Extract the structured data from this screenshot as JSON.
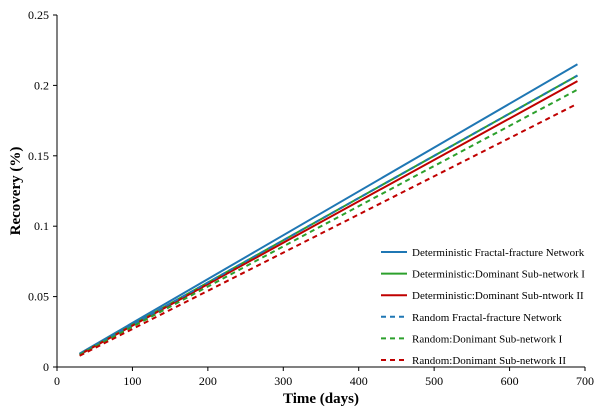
{
  "chart_data": {
    "type": "line",
    "title": "",
    "xlabel": "Time (days)",
    "ylabel": "Recovery (%)",
    "xlim": [
      0,
      700
    ],
    "ylim": [
      0,
      0.25
    ],
    "xticks": [
      0,
      100,
      200,
      300,
      400,
      500,
      600,
      700
    ],
    "yticks": [
      0,
      0.05,
      0.1,
      0.15,
      0.2,
      0.25
    ],
    "xtick_labels": [
      "0",
      "100",
      "200",
      "300",
      "400",
      "500",
      "600",
      "700"
    ],
    "ytick_labels": [
      "0",
      "0.05",
      "0.1",
      "0.15",
      "0.2",
      "0.25"
    ],
    "grid": false,
    "legend_position": "bottom-right",
    "series": [
      {
        "name": "Deterministic Fractal-fracture Network",
        "color": "#1f77b4",
        "dashed": false,
        "x": [
          30,
          690
        ],
        "y": [
          0.0095,
          0.215
        ]
      },
      {
        "name": "Deterministic:Dominant Sub-network I",
        "color": "#2ca02c",
        "dashed": false,
        "x": [
          30,
          690
        ],
        "y": [
          0.009,
          0.207
        ]
      },
      {
        "name": "Deterministic:Dominant Sub-ntwork II",
        "color": "#c00000",
        "dashed": false,
        "x": [
          30,
          690
        ],
        "y": [
          0.0088,
          0.203
        ]
      },
      {
        "name": "Random Fractal-fracture Network",
        "color": "#1f77b4",
        "dashed": true,
        "x": [
          30,
          690
        ],
        "y": [
          0.009,
          0.207
        ]
      },
      {
        "name": "Random:Donimant Sub-network I",
        "color": "#2ca02c",
        "dashed": true,
        "x": [
          30,
          690
        ],
        "y": [
          0.0086,
          0.197
        ]
      },
      {
        "name": "Random:Donimant Sub-network II",
        "color": "#c00000",
        "dashed": true,
        "x": [
          30,
          690
        ],
        "y": [
          0.008,
          0.187
        ]
      }
    ]
  }
}
